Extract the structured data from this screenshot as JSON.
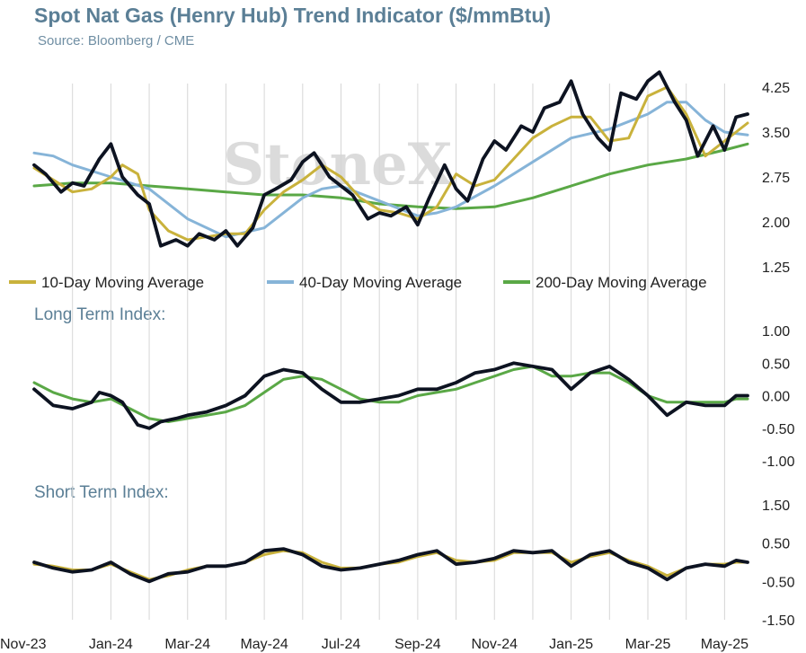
{
  "title": "Spot Nat Gas (Henry Hub) Trend Indicator ($/mmBtu)",
  "subtitle": "Source: Bloomberg / CME",
  "watermark": "StoneX",
  "colors": {
    "price": "#0d1321",
    "ma10": "#c9b23c",
    "ma40": "#86b4d8",
    "ma200": "#5aa846",
    "grid": "#d6d6d6"
  },
  "chart_data": [
    {
      "type": "line",
      "title": "",
      "ylim": [
        1.25,
        4.25
      ],
      "yticks": [
        "4.25",
        "3.50",
        "2.75",
        "2.00",
        "1.25"
      ],
      "yticks_values": [
        4.25,
        3.5,
        2.75,
        2.0,
        1.25
      ],
      "grid": "vertical",
      "legend": "bottom",
      "series": [
        {
          "name": "",
          "role": "price",
          "x": [
            0,
            0.3,
            0.7,
            1,
            1.3,
            1.7,
            2,
            2.3,
            2.7,
            3,
            3.3,
            3.7,
            4,
            4.3,
            4.7,
            5,
            5.3,
            5.7,
            6,
            6.3,
            6.7,
            7,
            7.3,
            7.7,
            8,
            8.3,
            8.7,
            9,
            9.3,
            9.7,
            10,
            10.3,
            10.7,
            11,
            11.3,
            11.7,
            12,
            12.3,
            12.7,
            13,
            13.3,
            13.7,
            14,
            14.3,
            14.7,
            15,
            15.3,
            15.7,
            16,
            16.3,
            16.7,
            17,
            17.3,
            17.7,
            18,
            18.3,
            18.6
          ],
          "values": [
            2.95,
            2.8,
            2.5,
            2.65,
            2.6,
            3.05,
            3.3,
            2.75,
            2.45,
            2.3,
            1.6,
            1.7,
            1.6,
            1.8,
            1.7,
            1.85,
            1.6,
            1.9,
            2.45,
            2.55,
            2.7,
            3.0,
            3.15,
            2.75,
            2.6,
            2.45,
            2.05,
            2.15,
            2.1,
            2.25,
            1.95,
            2.4,
            2.95,
            2.55,
            2.35,
            3.05,
            3.35,
            3.2,
            3.6,
            3.5,
            3.9,
            4.0,
            4.35,
            3.8,
            3.4,
            3.2,
            4.15,
            4.05,
            4.35,
            4.5,
            4.0,
            3.7,
            3.1,
            3.6,
            3.2,
            3.75,
            3.8
          ]
        },
        {
          "name": "10-Day Moving Average",
          "role": "ma10",
          "x": [
            0,
            0.5,
            1,
            1.5,
            2,
            2.3,
            2.7,
            3,
            3.5,
            4,
            4.5,
            5,
            5.5,
            6,
            6.5,
            7,
            7.5,
            8,
            8.5,
            9,
            9.5,
            10,
            10.5,
            11,
            11.5,
            12,
            12.5,
            13,
            13.5,
            14,
            14.5,
            15,
            15.5,
            16,
            16.5,
            17,
            17.5,
            18,
            18.6
          ],
          "values": [
            2.9,
            2.7,
            2.5,
            2.55,
            2.75,
            2.95,
            2.8,
            2.2,
            1.85,
            1.7,
            1.75,
            1.8,
            1.8,
            2.2,
            2.5,
            2.7,
            2.95,
            2.75,
            2.4,
            2.2,
            2.15,
            2.05,
            2.25,
            2.8,
            2.6,
            2.7,
            3.05,
            3.4,
            3.6,
            3.75,
            3.75,
            3.35,
            3.4,
            4.1,
            4.25,
            3.8,
            3.1,
            3.35,
            3.65
          ]
        },
        {
          "name": "40-Day Moving Average",
          "role": "ma40",
          "x": [
            0,
            0.5,
            1,
            2,
            3,
            4,
            5,
            6,
            7,
            7.5,
            8,
            9,
            10,
            10.5,
            11,
            12,
            13,
            14,
            15,
            16,
            16.5,
            17,
            17.5,
            18,
            18.6
          ],
          "values": [
            3.15,
            3.1,
            2.95,
            2.75,
            2.55,
            2.05,
            1.75,
            1.9,
            2.4,
            2.55,
            2.6,
            2.35,
            2.1,
            2.15,
            2.25,
            2.6,
            3.0,
            3.4,
            3.55,
            3.8,
            4.0,
            4.0,
            3.7,
            3.5,
            3.45
          ]
        },
        {
          "name": "200-Day Moving Average",
          "role": "ma200",
          "x": [
            0,
            1,
            2,
            3,
            4,
            5,
            6,
            7,
            8,
            9,
            10,
            11,
            12,
            13,
            14,
            15,
            16,
            17,
            18,
            18.6
          ],
          "values": [
            2.6,
            2.65,
            2.65,
            2.6,
            2.55,
            2.5,
            2.45,
            2.45,
            2.4,
            2.3,
            2.25,
            2.22,
            2.25,
            2.4,
            2.6,
            2.8,
            2.95,
            3.05,
            3.2,
            3.3
          ]
        }
      ]
    },
    {
      "type": "line",
      "title": "Long Term Index:",
      "ylim": [
        -1.0,
        1.0
      ],
      "yticks": [
        "1.00",
        "0.50",
        "0.00",
        "-0.50",
        "-1.00"
      ],
      "yticks_values": [
        1.0,
        0.5,
        0.0,
        -0.5,
        -1.0
      ],
      "series": [
        {
          "name": "",
          "role": "price",
          "x": [
            0,
            0.5,
            1,
            1.5,
            1.7,
            2,
            2.3,
            2.7,
            3,
            3.3,
            3.7,
            4,
            4.5,
            5,
            5.5,
            6,
            6.5,
            7,
            7.5,
            8,
            8.5,
            9,
            9.5,
            10,
            10.5,
            11,
            11.5,
            12,
            12.5,
            13,
            13.5,
            14,
            14.5,
            15,
            15.5,
            16,
            16.5,
            17,
            17.5,
            18,
            18.3,
            18.6
          ],
          "values": [
            0.1,
            -0.15,
            -0.2,
            -0.1,
            0.05,
            0.0,
            -0.1,
            -0.45,
            -0.5,
            -0.4,
            -0.35,
            -0.3,
            -0.25,
            -0.15,
            0.0,
            0.3,
            0.4,
            0.35,
            0.1,
            -0.1,
            -0.1,
            -0.05,
            0.0,
            0.1,
            0.1,
            0.2,
            0.35,
            0.4,
            0.5,
            0.45,
            0.4,
            0.1,
            0.35,
            0.45,
            0.25,
            0.0,
            -0.3,
            -0.1,
            -0.15,
            -0.15,
            0.0,
            0.0
          ]
        },
        {
          "name": "",
          "role": "ma200",
          "x": [
            0,
            0.5,
            1,
            1.5,
            2,
            2.5,
            3,
            3.5,
            4,
            4.5,
            5,
            5.5,
            6,
            6.5,
            7,
            7.5,
            8,
            8.5,
            9,
            9.5,
            10,
            10.5,
            11,
            11.5,
            12,
            12.5,
            13,
            13.5,
            14,
            14.5,
            15,
            15.5,
            16,
            16.5,
            17,
            17.5,
            18,
            18.3,
            18.6
          ],
          "values": [
            0.2,
            0.05,
            -0.05,
            -0.1,
            -0.05,
            -0.2,
            -0.35,
            -0.4,
            -0.35,
            -0.3,
            -0.25,
            -0.15,
            0.05,
            0.25,
            0.3,
            0.25,
            0.1,
            -0.05,
            -0.1,
            -0.1,
            0.0,
            0.05,
            0.1,
            0.2,
            0.3,
            0.4,
            0.45,
            0.3,
            0.3,
            0.35,
            0.35,
            0.2,
            0.0,
            -0.1,
            -0.1,
            -0.1,
            -0.1,
            -0.05,
            -0.05
          ]
        }
      ]
    },
    {
      "type": "line",
      "title": "Short Term Index:",
      "ylim": [
        -1.5,
        1.5
      ],
      "yticks": [
        "1.50",
        "0.50",
        "-0.50",
        "-1.50"
      ],
      "yticks_values": [
        1.5,
        0.5,
        -0.5,
        -1.5
      ],
      "series": [
        {
          "name": "",
          "role": "price",
          "x": [
            0,
            0.5,
            1,
            1.5,
            2,
            2.5,
            3,
            3.5,
            4,
            4.5,
            5,
            5.5,
            6,
            6.5,
            7,
            7.5,
            8,
            8.5,
            9,
            9.5,
            10,
            10.5,
            11,
            11.5,
            12,
            12.5,
            13,
            13.5,
            14,
            14.5,
            15,
            15.5,
            16,
            16.5,
            17,
            17.5,
            18,
            18.3,
            18.6
          ],
          "values": [
            0.0,
            -0.15,
            -0.25,
            -0.2,
            0.0,
            -0.3,
            -0.5,
            -0.3,
            -0.25,
            -0.1,
            -0.1,
            0.0,
            0.3,
            0.35,
            0.2,
            -0.1,
            -0.2,
            -0.15,
            -0.05,
            0.05,
            0.2,
            0.3,
            -0.05,
            0.0,
            0.1,
            0.3,
            0.25,
            0.3,
            -0.1,
            0.2,
            0.3,
            0.0,
            -0.15,
            -0.45,
            -0.15,
            -0.05,
            -0.1,
            0.05,
            0.0
          ]
        },
        {
          "name": "",
          "role": "ma10",
          "x": [
            0,
            0.5,
            1,
            1.5,
            2,
            2.5,
            3,
            3.5,
            4,
            4.5,
            5,
            5.5,
            6,
            6.5,
            7,
            7.5,
            8,
            8.5,
            9,
            9.5,
            10,
            10.5,
            11,
            11.5,
            12,
            12.5,
            13,
            13.5,
            14,
            14.5,
            15,
            15.5,
            16,
            16.5,
            17,
            17.5,
            18,
            18.3,
            18.6
          ],
          "values": [
            -0.05,
            -0.1,
            -0.2,
            -0.2,
            -0.05,
            -0.25,
            -0.45,
            -0.35,
            -0.2,
            -0.1,
            -0.1,
            0.0,
            0.2,
            0.3,
            0.25,
            0.0,
            -0.15,
            -0.15,
            -0.05,
            0.0,
            0.15,
            0.25,
            0.05,
            0.0,
            0.05,
            0.25,
            0.25,
            0.25,
            0.0,
            0.15,
            0.25,
            0.05,
            -0.1,
            -0.35,
            -0.15,
            -0.05,
            -0.05,
            0.0,
            0.0
          ]
        }
      ]
    }
  ],
  "x_axis": {
    "labels": [
      "Nov-23",
      "Jan-24",
      "Mar-24",
      "May-24",
      "Jul-24",
      "Sep-24",
      "Nov-24",
      "Jan-25",
      "Mar-25",
      "May-25"
    ],
    "positions": [
      0,
      2,
      4,
      6,
      8,
      10,
      12,
      14,
      16,
      18
    ],
    "xlim": [
      0,
      18.6
    ]
  }
}
